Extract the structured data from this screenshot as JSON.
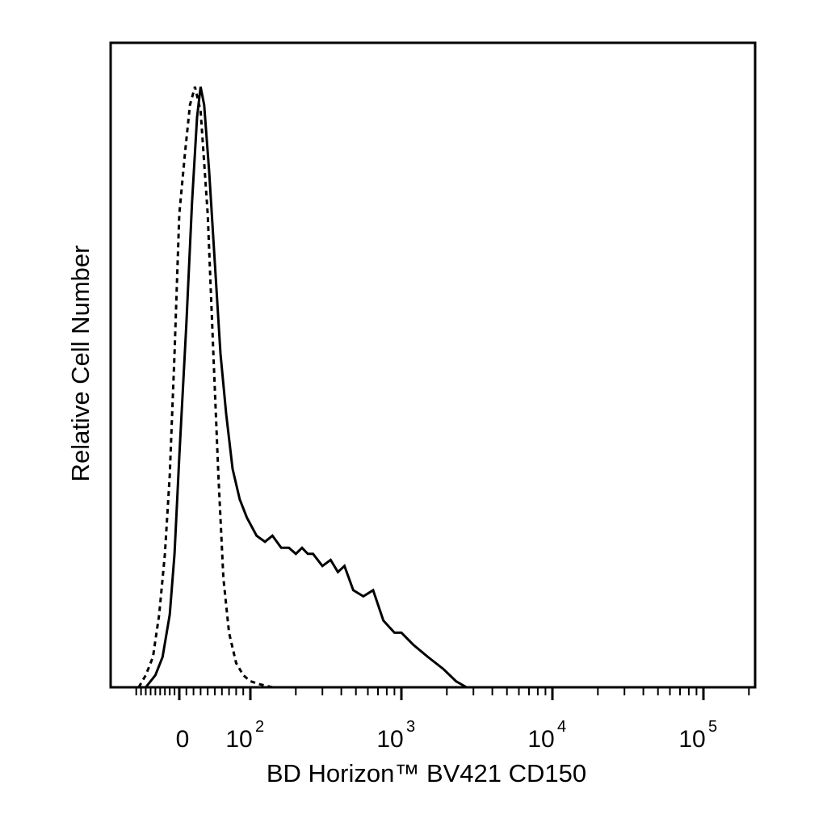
{
  "chart_data": {
    "type": "line",
    "title": "",
    "xlabel": "BD Horizon™ BV421 CD150",
    "ylabel": "Relative Cell Number",
    "x_scale": "biexponential",
    "xlim": [
      -100,
      200000
    ],
    "ylim": [
      0,
      100
    ],
    "grid": false,
    "legend": "none",
    "x_ticks": [
      {
        "base": "0",
        "exp": ""
      },
      {
        "base": "10",
        "exp": "2"
      },
      {
        "base": "10",
        "exp": "3"
      },
      {
        "base": "10",
        "exp": "4"
      },
      {
        "base": "10",
        "exp": "5"
      }
    ],
    "x_tick_values": [
      0,
      100,
      1000,
      10000,
      100000
    ],
    "series": [
      {
        "style": "dashed",
        "color": "#000000",
        "x": [
          -85,
          -70,
          -55,
          -42,
          -30,
          -20,
          -10,
          0,
          8,
          15,
          22,
          30,
          40,
          48,
          55,
          62,
          70,
          80,
          90,
          100,
          115,
          140
        ],
        "y": [
          0,
          2,
          5,
          12,
          22,
          35,
          55,
          78,
          88,
          96,
          99,
          95,
          78,
          55,
          35,
          18,
          9,
          4,
          2,
          1,
          0.5,
          0
        ]
      },
      {
        "style": "solid",
        "color": "#000000",
        "x": [
          -70,
          -50,
          -35,
          -20,
          -10,
          0,
          10,
          18,
          25,
          30,
          35,
          42,
          50,
          58,
          66,
          75,
          85,
          95,
          110,
          125,
          140,
          160,
          180,
          200,
          220,
          240,
          260,
          300,
          340,
          380,
          420,
          480,
          560,
          650,
          760,
          900,
          1000,
          1200,
          1500,
          1900,
          2300,
          2700
        ],
        "y": [
          0,
          2,
          5,
          12,
          22,
          38,
          60,
          80,
          94,
          99,
          96,
          85,
          70,
          55,
          45,
          36,
          31,
          28,
          25,
          24,
          25,
          23,
          23,
          22,
          23,
          22,
          22,
          20,
          21,
          19,
          20,
          16,
          15,
          16,
          11,
          9,
          9,
          7,
          5,
          3,
          1,
          0
        ]
      }
    ]
  }
}
